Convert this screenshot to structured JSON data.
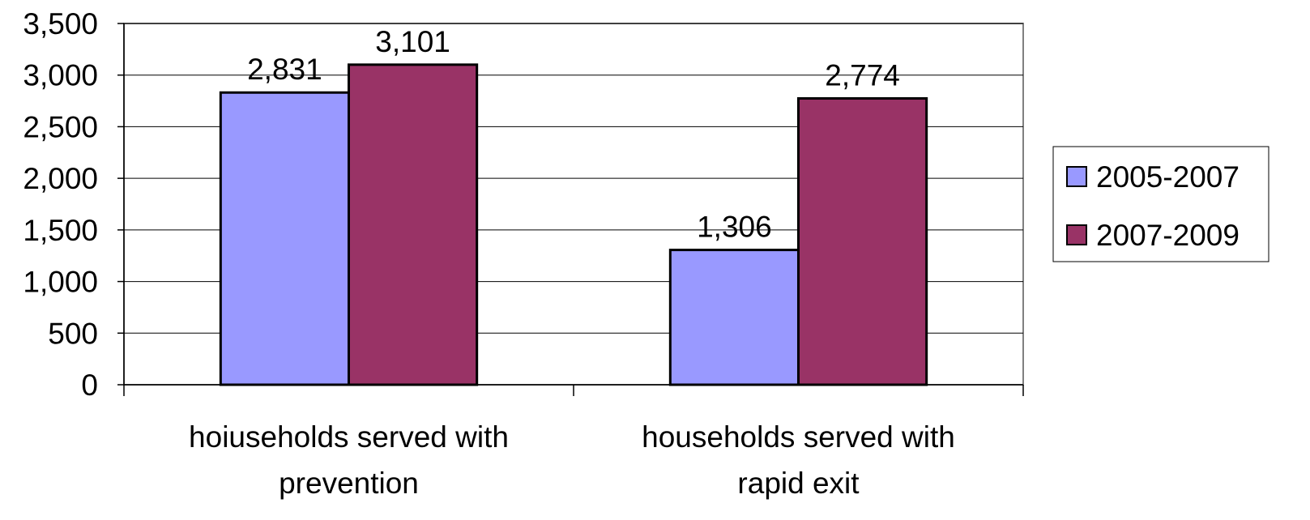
{
  "chart_data": {
    "type": "bar",
    "title": "",
    "xlabel": "",
    "ylabel": "",
    "categories": [
      [
        "hoiuseholds served with",
        "prevention"
      ],
      [
        "households served with",
        "rapid exit"
      ]
    ],
    "series": [
      {
        "name": "2005-2007",
        "color": "#9999ff",
        "values": [
          2831,
          1306
        ],
        "labels": [
          "2,831",
          "1,306"
        ]
      },
      {
        "name": "2007-2009",
        "color": "#993366",
        "values": [
          3101,
          2774
        ],
        "labels": [
          "3,101",
          "2,774"
        ]
      }
    ],
    "ylim": [
      0,
      3500
    ],
    "yticks": [
      0,
      500,
      1000,
      1500,
      2000,
      2500,
      3000,
      3500
    ],
    "ytick_labels": [
      "0",
      "500",
      "1,000",
      "1,500",
      "2,000",
      "2,500",
      "3,000",
      "3,500"
    ],
    "grid": true,
    "legend_position": "right"
  }
}
